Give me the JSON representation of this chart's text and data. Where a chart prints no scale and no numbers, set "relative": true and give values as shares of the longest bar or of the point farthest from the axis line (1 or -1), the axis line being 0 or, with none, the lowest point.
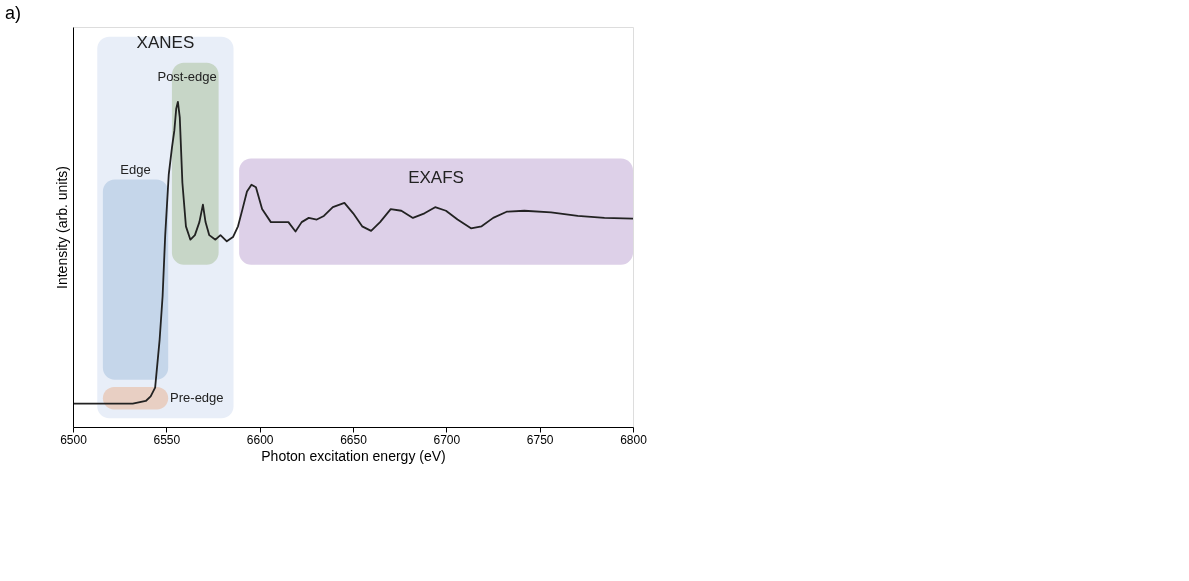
{
  "chart_data": {
    "type": "line",
    "relative": true,
    "xlabel": "Photon excitation energy (eV)",
    "ylabel": "Intensity (arb. units)",
    "xlim": [
      6500,
      6800
    ],
    "xticks": [
      6500,
      6550,
      6600,
      6650,
      6700,
      6750,
      6800
    ],
    "grid": false,
    "marker": "none",
    "line_style": "solid",
    "x": [
      6500,
      6532,
      6539,
      6541.6,
      6544,
      6546.4,
      6548,
      6549.4,
      6551.3,
      6553,
      6554.3,
      6555.3,
      6556.2,
      6557.2,
      6558.6,
      6560.5,
      6562.9,
      6565.3,
      6567.7,
      6569.6,
      6571,
      6573,
      6576.3,
      6579,
      6582.4,
      6585.7,
      6588.4,
      6590.8,
      6593.2,
      6595.6,
      6598,
      6601.3,
      6606,
      6610.7,
      6615.4,
      6619.2,
      6622.5,
      6626.3,
      6630.6,
      6634.4,
      6639.2,
      6645.4,
      6650.1,
      6654.9,
      6659.7,
      6664.5,
      6670.2,
      6675.9,
      6682.1,
      6688.3,
      6694,
      6699.8,
      6706,
      6713.2,
      6718.9,
      6725.1,
      6732.3,
      6741.8,
      6756.1,
      6770.4,
      6784.7,
      6800
    ],
    "series": [
      {
        "color": "#222222",
        "values": [
          0.072,
          0.072,
          0.08,
          0.094,
          0.121,
          0.268,
          0.402,
          0.59,
          0.777,
          0.858,
          0.912,
          0.979,
          1,
          0.952,
          0.751,
          0.617,
          0.576,
          0.59,
          0.63,
          0.684,
          0.63,
          0.59,
          0.576,
          0.59,
          0.571,
          0.584,
          0.617,
          0.67,
          0.724,
          0.745,
          0.737,
          0.67,
          0.63,
          0.63,
          0.63,
          0.601,
          0.63,
          0.643,
          0.638,
          0.649,
          0.676,
          0.689,
          0.657,
          0.617,
          0.603,
          0.63,
          0.67,
          0.665,
          0.643,
          0.657,
          0.676,
          0.665,
          0.638,
          0.611,
          0.617,
          0.643,
          0.662,
          0.665,
          0.66,
          0.649,
          0.643,
          0.641
        ]
      }
    ],
    "bands": [
      {
        "axis": "x",
        "from": 6513,
        "to": 6586,
        "color": "#e8eef8",
        "label": "XANES"
      },
      {
        "axis": "x",
        "from": 6516,
        "to": 6551,
        "color": "#c5d6ea",
        "label": "Edge"
      },
      {
        "axis": "x",
        "from": 6516,
        "to": 6551,
        "color": "#e8cfc3",
        "label": "Pre-edge"
      },
      {
        "axis": "x",
        "from": 6553,
        "to": 6578,
        "color": "#c7d6c7",
        "label": "Post-edge"
      },
      {
        "axis": "x",
        "from": 6589,
        "to": 6800,
        "color": "#ddd0e8",
        "label": "EXAFS"
      }
    ],
    "annotations": [
      "a)"
    ]
  }
}
